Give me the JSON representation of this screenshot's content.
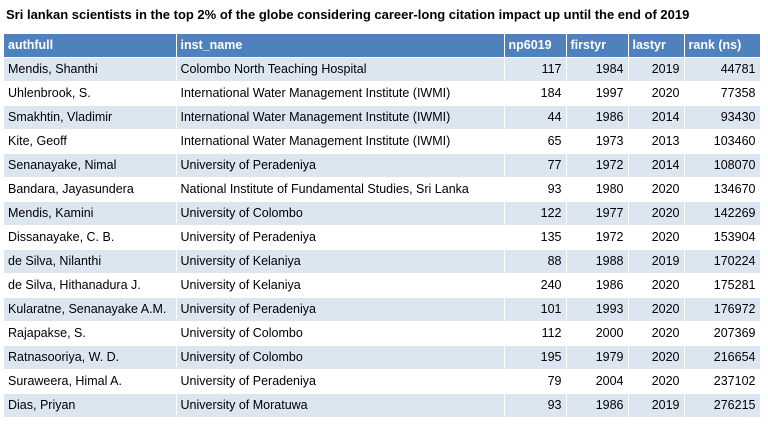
{
  "title": "Sri lankan scientists in the top 2% of the globe considering career-long citation impact up until the end of 2019",
  "columns": [
    "authfull",
    "inst_name",
    "np6019",
    "firstyr",
    "lastyr",
    "rank (ns)"
  ],
  "rows": [
    [
      "Mendis, Shanthi",
      "Colombo North Teaching Hospital",
      "117",
      "1984",
      "2019",
      "44781"
    ],
    [
      "Uhlenbrook, S.",
      "International Water Management Institute (IWMI)",
      "184",
      "1997",
      "2020",
      "77358"
    ],
    [
      "Smakhtin, Vladimir",
      "International Water Management Institute (IWMI)",
      "44",
      "1986",
      "2014",
      "93430"
    ],
    [
      "Kite, Geoff",
      "International Water Management Institute (IWMI)",
      "65",
      "1973",
      "2013",
      "103460"
    ],
    [
      "Senanayake, Nimal",
      "University of Peradeniya",
      "77",
      "1972",
      "2014",
      "108070"
    ],
    [
      "Bandara, Jayasundera",
      "National Institute of Fundamental Studies, Sri Lanka",
      "93",
      "1980",
      "2020",
      "134670"
    ],
    [
      "Mendis, Kamini",
      "University of Colombo",
      "122",
      "1977",
      "2020",
      "142269"
    ],
    [
      "Dissanayake, C. B.",
      "University of Peradeniya",
      "135",
      "1972",
      "2020",
      "153904"
    ],
    [
      "de Silva, Nilanthi",
      "University of Kelaniya",
      "88",
      "1988",
      "2019",
      "170224"
    ],
    [
      "de Silva, Hithanadura J.",
      "University of Kelaniya",
      "240",
      "1986",
      "2020",
      "175281"
    ],
    [
      "Kularatne, Senanayake A.M.",
      "University of Peradeniya",
      "101",
      "1993",
      "2020",
      "176972"
    ],
    [
      "Rajapakse, S.",
      "University of Colombo",
      "112",
      "2000",
      "2020",
      "207369"
    ],
    [
      "Ratnasooriya, W. D.",
      "University of Colombo",
      "195",
      "1979",
      "2020",
      "216654"
    ],
    [
      "Suraweera, Himal A.",
      "University of Peradeniya",
      "79",
      "2004",
      "2020",
      "237102"
    ],
    [
      "Dias, Priyan",
      "University of Moratuwa",
      "93",
      "1986",
      "2019",
      "276215"
    ]
  ],
  "colors": {
    "header_bg": "#4f81bd",
    "header_text": "#ffffff",
    "row_alt_bg": "#dce6f1",
    "row_bg": "#ffffff"
  }
}
